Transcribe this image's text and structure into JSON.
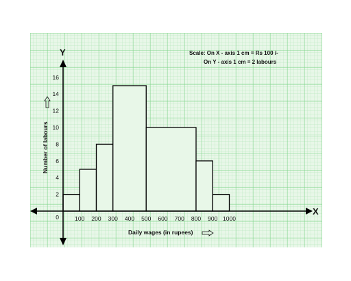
{
  "chart_data": {
    "type": "bar",
    "bins": [
      {
        "from": 0,
        "to": 100,
        "value": 2
      },
      {
        "from": 100,
        "to": 200,
        "value": 5
      },
      {
        "from": 200,
        "to": 300,
        "value": 8
      },
      {
        "from": 300,
        "to": 500,
        "value": 15
      },
      {
        "from": 500,
        "to": 800,
        "value": 10
      },
      {
        "from": 800,
        "to": 900,
        "value": 6
      },
      {
        "from": 900,
        "to": 1000,
        "value": 2
      }
    ],
    "x_ticks": [
      "100",
      "200",
      "300",
      "400",
      "500",
      "600",
      "700",
      "800",
      "900",
      "1000"
    ],
    "y_ticks": [
      "2",
      "4",
      "6",
      "8",
      "10",
      "12",
      "14",
      "16"
    ],
    "origin_label": "0",
    "xlabel": "Daily wages (in rupees)",
    "ylabel": "Number of labours",
    "x_axis_letter": "X",
    "y_axis_letter": "Y",
    "xlim": [
      0,
      1000
    ],
    "ylim": [
      0,
      16
    ],
    "grid": true,
    "grid_color": "#7fd48a",
    "background_color": "#e8f7e8",
    "bar_fill": "#e8f7e8",
    "bar_stroke": "#000000",
    "scale_note": {
      "line1": "Scale: On X - axis 1 cm =  Rs 100 /-",
      "line2": "On Y - axis 1 cm = 2 labours"
    }
  }
}
